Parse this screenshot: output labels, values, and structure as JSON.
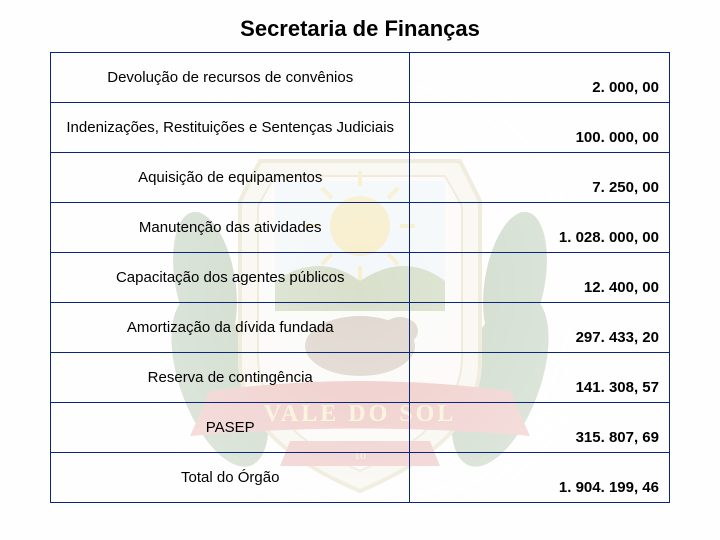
{
  "title": "Secretaria de Finanças",
  "table": {
    "border_color": "#09267a",
    "rows": [
      {
        "label": "Devolução de recursos de convênios",
        "value": "2. 000, 00"
      },
      {
        "label": "Indenizações, Restituições e Sentenças Judiciais",
        "value": "100. 000, 00"
      },
      {
        "label": "Aquisição de equipamentos",
        "value": "7. 250, 00"
      },
      {
        "label": "Manutenção das atividades",
        "value": "1. 028. 000, 00"
      },
      {
        "label": "Capacitação dos agentes públicos",
        "value": "12. 400, 00"
      },
      {
        "label": "Amortização da dívida fundada",
        "value": "297. 433, 20"
      },
      {
        "label": "Reserva de contingência",
        "value": "141. 308, 57"
      },
      {
        "label": "PASEP",
        "value": "315. 807, 69"
      },
      {
        "label": "Total do Órgão",
        "value": "1. 904. 199, 46"
      }
    ]
  },
  "crest": {
    "shield_outer": "#e8e2c8",
    "shield_inner": "#f5f3e8",
    "banner_red": "#c23a2e",
    "banner_text": "#f0d060",
    "leaf_green": "#3a6b2a",
    "sun": "#e7c23a",
    "hill": "#6b8a3a",
    "sky": "#d8e8f0",
    "cow": "#8a6a4a"
  }
}
